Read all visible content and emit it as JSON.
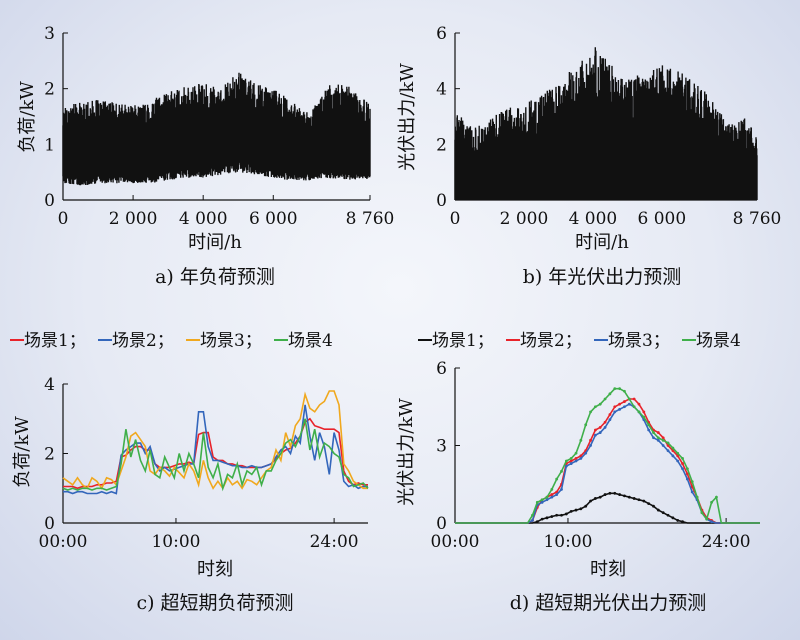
{
  "chart_data": [
    {
      "id": "a",
      "type": "area",
      "caption": "a) 年负荷预测",
      "xlabel": "时间/h",
      "ylabel": "负荷/kW",
      "xlim": [
        0,
        8760
      ],
      "ylim": [
        0,
        3
      ],
      "xticks": [
        0,
        2000,
        4000,
        6000,
        8760
      ],
      "xtick_labels": [
        "0",
        "2 000",
        "4 000",
        "6 000",
        "8 760"
      ],
      "yticks": [
        0,
        1,
        2,
        3
      ],
      "ytick_labels": [
        "0",
        "1",
        "2",
        "3"
      ],
      "color": "#111111",
      "band": {
        "x": [
          0,
          500,
          1000,
          1500,
          2000,
          2500,
          3000,
          3500,
          4000,
          4500,
          5000,
          5500,
          6000,
          6500,
          7000,
          7500,
          8000,
          8500,
          8760
        ],
        "low": [
          0.3,
          0.25,
          0.3,
          0.3,
          0.3,
          0.3,
          0.35,
          0.4,
          0.4,
          0.45,
          0.5,
          0.45,
          0.4,
          0.35,
          0.35,
          0.4,
          0.35,
          0.35,
          0.35
        ],
        "high": [
          1.7,
          1.75,
          1.8,
          1.75,
          1.7,
          1.8,
          1.95,
          2.05,
          2.1,
          2.0,
          2.3,
          2.1,
          2.0,
          1.8,
          1.6,
          2.05,
          2.1,
          1.9,
          1.7
        ]
      }
    },
    {
      "id": "b",
      "type": "area",
      "caption": "b) 年光伏出力预测",
      "xlabel": "时间/h",
      "ylabel": "光伏出力/kW",
      "xlim": [
        0,
        8760
      ],
      "ylim": [
        0,
        6
      ],
      "xticks": [
        0,
        2000,
        4000,
        6000,
        8760
      ],
      "xtick_labels": [
        "0",
        "2 000",
        "4 000",
        "6 000",
        "8 760"
      ],
      "yticks": [
        0,
        2,
        4,
        6
      ],
      "ytick_labels": [
        "0",
        "2",
        "4",
        "6"
      ],
      "color": "#111111",
      "envelope": {
        "x": [
          0,
          500,
          1000,
          1500,
          2000,
          2500,
          3000,
          3500,
          4000,
          4500,
          5000,
          5500,
          6000,
          6500,
          7000,
          7500,
          8000,
          8500,
          8760
        ],
        "high": [
          3.2,
          2.6,
          2.9,
          3.3,
          3.5,
          3.8,
          4.3,
          4.8,
          5.6,
          5.0,
          4.6,
          4.6,
          4.9,
          4.7,
          4.3,
          3.5,
          2.8,
          3.0,
          2.2
        ]
      }
    },
    {
      "id": "c",
      "type": "line",
      "caption": "c) 超短期负荷预测",
      "xlabel": "时刻",
      "ylabel": "负荷/kW",
      "xlim": [
        0,
        27
      ],
      "ylim": [
        0,
        4
      ],
      "xticks": [
        0,
        10,
        24
      ],
      "xtick_labels": [
        "00:00",
        "10:00",
        "24:00"
      ],
      "yticks": [
        0,
        2,
        4
      ],
      "ytick_labels": [
        "0",
        "2",
        "4"
      ],
      "legend": [
        "场景1；",
        "场景2；",
        "场景3；",
        "场景4"
      ],
      "series": [
        {
          "name": "场景1",
          "color": "#e8232a",
          "values": [
            1.05,
            1.05,
            1.05,
            1.0,
            1.05,
            1.05,
            1.05,
            1.1,
            1.1,
            1.15,
            1.15,
            1.2,
            1.9,
            1.95,
            2.1,
            2.2,
            2.2,
            2.1,
            2.1,
            1.7,
            1.6,
            1.6,
            1.6,
            1.65,
            1.7,
            1.7,
            1.75,
            1.7,
            2.55,
            2.6,
            2.6,
            1.9,
            1.8,
            1.8,
            1.7,
            1.7,
            1.65,
            1.65,
            1.6,
            1.6,
            1.6,
            1.6,
            1.65,
            1.7,
            1.85,
            2.0,
            2.1,
            2.15,
            2.3,
            2.5,
            2.9,
            3.0,
            2.8,
            2.75,
            2.7,
            2.7,
            2.7,
            2.6,
            1.5,
            1.2,
            1.1,
            1.15,
            1.1,
            1.1
          ]
        },
        {
          "name": "场景2",
          "color": "#3366bb",
          "values": [
            0.9,
            0.9,
            0.85,
            0.9,
            0.9,
            0.85,
            0.85,
            0.85,
            0.9,
            0.85,
            0.9,
            0.85,
            1.95,
            2.1,
            2.2,
            2.3,
            2.3,
            2.0,
            2.2,
            1.7,
            1.5,
            1.6,
            1.5,
            1.55,
            1.6,
            1.65,
            1.7,
            1.7,
            3.2,
            3.2,
            2.2,
            1.8,
            1.8,
            1.75,
            1.7,
            1.65,
            1.65,
            1.6,
            1.6,
            1.65,
            1.6,
            1.6,
            1.65,
            1.7,
            1.9,
            2.1,
            2.2,
            2.0,
            2.5,
            2.3,
            3.4,
            2.5,
            1.8,
            2.6,
            2.2,
            1.4,
            2.6,
            2.1,
            1.2,
            1.05,
            1.1,
            1.0,
            1.05,
            1.05
          ]
        },
        {
          "name": "场景3",
          "color": "#f0a81e",
          "values": [
            1.3,
            1.2,
            1.1,
            1.3,
            1.1,
            1.0,
            1.3,
            1.2,
            1.0,
            1.3,
            1.25,
            1.1,
            1.5,
            1.9,
            2.5,
            2.6,
            2.4,
            2.2,
            1.5,
            1.4,
            1.6,
            1.5,
            1.35,
            1.6,
            1.45,
            1.3,
            1.7,
            1.5,
            1.1,
            1.8,
            1.3,
            1.0,
            1.2,
            1.0,
            1.3,
            1.1,
            1.2,
            1.0,
            1.25,
            1.2,
            1.1,
            1.3,
            1.5,
            1.6,
            2.1,
            1.8,
            2.6,
            2.2,
            2.8,
            3.0,
            3.7,
            3.3,
            3.2,
            3.4,
            3.5,
            3.8,
            3.8,
            3.4,
            1.7,
            1.5,
            1.2,
            1.1,
            1.0,
            1.0
          ]
        },
        {
          "name": "场景4",
          "color": "#3faf4a",
          "values": [
            1.0,
            0.95,
            1.0,
            0.95,
            1.0,
            1.0,
            0.95,
            1.0,
            1.0,
            0.95,
            1.0,
            1.05,
            1.7,
            2.7,
            1.9,
            2.4,
            1.8,
            1.5,
            2.1,
            1.4,
            1.3,
            1.9,
            1.6,
            1.3,
            2.0,
            1.5,
            2.0,
            1.7,
            1.3,
            2.6,
            1.6,
            1.3,
            1.7,
            1.0,
            1.4,
            1.3,
            1.7,
            1.1,
            1.5,
            1.4,
            1.6,
            1.1,
            1.5,
            1.5,
            1.8,
            2.0,
            2.3,
            2.4,
            2.2,
            2.5,
            3.0,
            2.1,
            2.7,
            1.9,
            2.3,
            2.2,
            2.0,
            1.9,
            1.4,
            1.3,
            1.05,
            1.1,
            1.15,
            1.0
          ]
        }
      ]
    },
    {
      "id": "d",
      "type": "line",
      "caption": "d) 超短期光伏出力预测",
      "xlabel": "时刻",
      "ylabel": "光伏出力/kW",
      "xlim": [
        0,
        27
      ],
      "ylim": [
        0,
        6
      ],
      "xticks": [
        0,
        10,
        24
      ],
      "xtick_labels": [
        "00:00",
        "10:00",
        "24:00"
      ],
      "yticks": [
        0,
        3,
        6
      ],
      "ytick_labels": [
        "0",
        "3",
        "6"
      ],
      "legend": [
        "场景1；",
        "场景2；",
        "场景3；",
        "场景4"
      ],
      "series": [
        {
          "name": "场景1",
          "color": "#111111",
          "values": [
            0,
            0,
            0,
            0,
            0,
            0,
            0,
            0,
            0,
            0,
            0,
            0,
            0,
            0,
            0,
            0,
            0,
            0.05,
            0.15,
            0.2,
            0.25,
            0.3,
            0.3,
            0.35,
            0.45,
            0.5,
            0.55,
            0.65,
            0.85,
            0.95,
            1.0,
            1.1,
            1.15,
            1.15,
            1.1,
            1.05,
            1.0,
            0.95,
            0.9,
            0.85,
            0.75,
            0.65,
            0.5,
            0.4,
            0.3,
            0.2,
            0.1,
            0.05,
            0,
            0,
            0,
            0,
            0,
            0,
            0,
            0,
            0,
            0,
            0,
            0,
            0,
            0,
            0,
            0
          ]
        },
        {
          "name": "场景2",
          "color": "#e8232a",
          "values": [
            0,
            0,
            0,
            0,
            0,
            0,
            0,
            0,
            0,
            0,
            0,
            0,
            0,
            0,
            0,
            0,
            0.1,
            0.6,
            0.9,
            1.0,
            1.1,
            1.2,
            1.5,
            2.3,
            2.4,
            2.5,
            2.6,
            2.8,
            3.2,
            3.6,
            3.7,
            3.9,
            4.2,
            4.5,
            4.6,
            4.7,
            4.8,
            4.8,
            4.6,
            4.3,
            3.9,
            3.6,
            3.5,
            3.3,
            3.0,
            2.8,
            2.6,
            2.3,
            1.9,
            1.4,
            1.0,
            0.5,
            0.2,
            0.1,
            0,
            0,
            0,
            0,
            0,
            0,
            0,
            0,
            0,
            0
          ]
        },
        {
          "name": "场景3",
          "color": "#3366bb",
          "values": [
            0,
            0,
            0,
            0,
            0,
            0,
            0,
            0,
            0,
            0,
            0,
            0,
            0,
            0,
            0,
            0,
            0.1,
            0.7,
            0.8,
            0.9,
            1.0,
            1.1,
            1.3,
            2.2,
            2.3,
            2.4,
            2.5,
            2.7,
            3.0,
            3.4,
            3.5,
            3.7,
            4.0,
            4.3,
            4.4,
            4.5,
            4.6,
            4.5,
            4.3,
            4.0,
            3.6,
            3.3,
            3.2,
            3.0,
            2.8,
            2.6,
            2.4,
            2.1,
            1.7,
            1.2,
            0.9,
            0.4,
            0.15,
            0.05,
            0,
            0,
            0,
            0,
            0,
            0,
            0,
            0,
            0,
            0
          ]
        },
        {
          "name": "场景4",
          "color": "#3faf4a",
          "values": [
            0,
            0,
            0,
            0,
            0,
            0,
            0,
            0,
            0,
            0,
            0,
            0,
            0,
            0,
            0,
            0,
            0.3,
            0.8,
            0.9,
            1.0,
            1.3,
            1.7,
            2.0,
            2.4,
            2.5,
            2.7,
            3.2,
            3.8,
            4.3,
            4.5,
            4.6,
            4.8,
            5.0,
            5.2,
            5.2,
            5.1,
            4.8,
            4.5,
            4.3,
            4.1,
            3.8,
            3.5,
            3.3,
            3.2,
            3.1,
            2.9,
            2.7,
            2.5,
            2.1,
            1.6,
            1.0,
            0.4,
            0.15,
            0.8,
            1.0,
            0,
            0,
            0,
            0,
            0,
            0,
            0,
            0,
            0
          ]
        }
      ]
    }
  ]
}
